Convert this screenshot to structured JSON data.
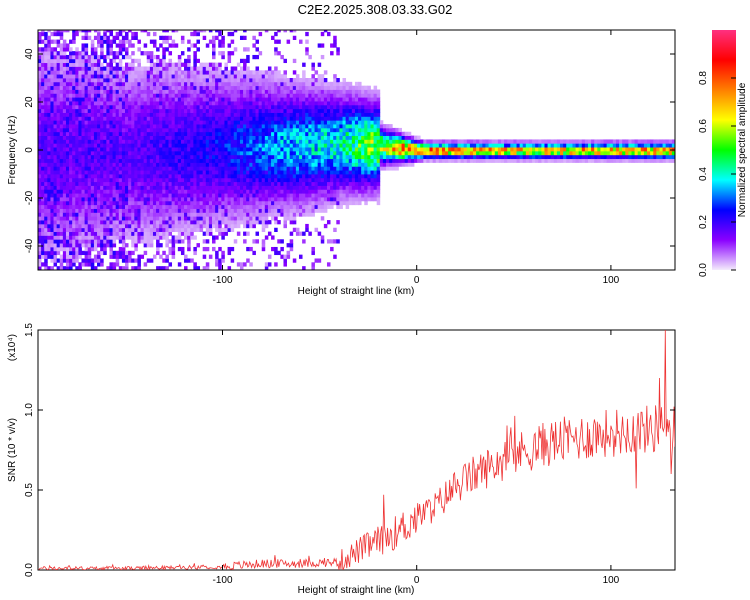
{
  "figure_title": "C2E2.2025.308.03.33.G02",
  "colors": {
    "snr_line": "#ee3333",
    "axis": "#000000"
  },
  "chart_data": [
    {
      "type": "heatmap",
      "title": "",
      "xlabel": "Height of straight line (km)",
      "ylabel": "Frequency (Hz)",
      "xlim": [
        -195,
        133
      ],
      "ylim": [
        -50,
        50
      ],
      "x_ticks": [
        -100,
        0,
        100
      ],
      "x_tick_labels": [
        "-100",
        "0",
        "100"
      ],
      "y_ticks": [
        -40,
        -20,
        0,
        20,
        40
      ],
      "y_tick_labels": [
        "-40",
        "-20",
        "0",
        "20",
        "40"
      ],
      "colorbar": {
        "label": "Normalized spectral amplitude",
        "range": [
          0,
          1
        ],
        "ticks": [
          0.0,
          0.2,
          0.4,
          0.6,
          0.8
        ],
        "tick_labels": [
          "0.0",
          "0.2",
          "0.4",
          "0.6",
          "0.8"
        ],
        "colormap": [
          "#f4ecfc",
          "#8a00ff",
          "#0000ff",
          "#00ffff",
          "#00ff00",
          "#ffff00",
          "#ff7f00",
          "#ff0000",
          "#ff3080"
        ]
      },
      "ridge": {
        "description_points_x": [
          -150,
          -100,
          -60,
          -40,
          -20,
          -10,
          0,
          50,
          100,
          133
        ],
        "center_frequency": [
          -2,
          0,
          1,
          2,
          1,
          0,
          -1,
          -1,
          -1,
          -1
        ],
        "peak_amplitude": [
          0.2,
          0.3,
          0.45,
          0.5,
          0.7,
          0.95,
          0.95,
          0.85,
          0.9,
          0.9
        ]
      }
    },
    {
      "type": "line",
      "title": "",
      "xlabel": "Height of straight line (km)",
      "ylabel": "SNR (10 * v/v)",
      "y_scale_label": "(x10⁴)",
      "xlim": [
        -195,
        133
      ],
      "ylim": [
        0,
        1.5
      ],
      "x_ticks": [
        -100,
        0,
        100
      ],
      "x_tick_labels": [
        "-100",
        "0",
        "100"
      ],
      "y_ticks": [
        0.0,
        0.5,
        1.0,
        1.5
      ],
      "y_tick_labels": [
        "0.0",
        "0.5",
        "1.0",
        "1.5"
      ],
      "series": [
        {
          "trend_x": [
            -195,
            -150,
            -100,
            -80,
            -60,
            -40,
            -30,
            -20,
            -10,
            0,
            10,
            20,
            30,
            40,
            50,
            60,
            70,
            80,
            90,
            100,
            110,
            120,
            125,
            130,
            133
          ],
          "trend_y": [
            0.01,
            0.01,
            0.02,
            0.04,
            0.04,
            0.05,
            0.12,
            0.18,
            0.24,
            0.33,
            0.4,
            0.52,
            0.6,
            0.66,
            0.72,
            0.76,
            0.8,
            0.82,
            0.84,
            0.86,
            0.87,
            0.88,
            0.89,
            0.9,
            0.87
          ],
          "spikes": [
            {
              "x": -17,
              "y": 0.47
            },
            {
              "x": 128,
              "y": 1.5
            },
            {
              "x": 125,
              "y": 1.2
            },
            {
              "x": 113,
              "y": 0.51
            },
            {
              "x": 131,
              "y": 0.6
            }
          ]
        }
      ]
    }
  ]
}
